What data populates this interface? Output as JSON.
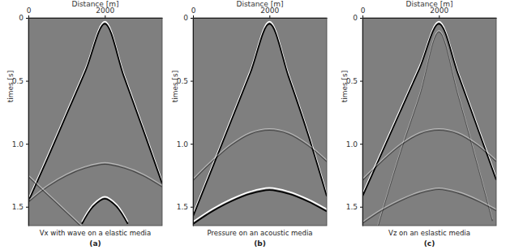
{
  "chart_data": [
    {
      "type": "line",
      "title": "Vx with wave on a elastic media",
      "subtitle": "(a)",
      "x_label": "Distance [m]",
      "y_label": "times [s]",
      "xlim": [
        0,
        3500
      ],
      "ylim": [
        0,
        1.65
      ],
      "xticks": [
        0,
        2000
      ],
      "yticks": [
        0,
        0.5,
        {
          "value": 1,
          "label": "1.0"
        },
        1.5
      ],
      "series": [
        {
          "line_style": "strong",
          "x": [
            0,
            500,
            1000,
            1500,
            2000,
            2500,
            3000,
            3500
          ],
          "values": [
            1.44,
            1.1,
            0.75,
            0.4,
            0.03,
            0.45,
            0.87,
            1.3
          ]
        },
        {
          "line_style": "faint",
          "x": [
            0,
            500,
            1000,
            1500,
            2000,
            2500,
            3000,
            3500
          ],
          "values": [
            1.45,
            1.33,
            1.24,
            1.18,
            1.15,
            1.18,
            1.24,
            1.33
          ]
        },
        {
          "line_style": "strong",
          "x": [
            1400,
            1700,
            2000,
            2300,
            2600
          ],
          "values": [
            1.62,
            1.48,
            1.42,
            1.48,
            1.62
          ]
        },
        {
          "line_style": "faint",
          "x": [
            0,
            700,
            1400
          ],
          "values": [
            1.25,
            1.45,
            1.65
          ]
        }
      ]
    },
    {
      "type": "line",
      "title": "Pressure on an acoustic media",
      "subtitle": "(b)",
      "x_label": "Distance [m]",
      "y_label": "times [s]",
      "xlim": [
        0,
        3500
      ],
      "ylim": [
        0,
        1.65
      ],
      "xticks": [
        0,
        2000
      ],
      "yticks": [
        0,
        0.5,
        {
          "value": 1,
          "label": "1.0"
        },
        1.5
      ],
      "series": [
        {
          "line_style": "strong",
          "x": [
            0,
            500,
            1000,
            1500,
            2000,
            2500,
            3000,
            3500
          ],
          "values": [
            1.56,
            1.18,
            0.8,
            0.42,
            0.03,
            0.45,
            0.9,
            1.4
          ]
        },
        {
          "line_style": "faint",
          "x": [
            0,
            500,
            1000,
            1500,
            2000,
            2500,
            3000,
            3500
          ],
          "values": [
            1.28,
            1.13,
            1.0,
            0.91,
            0.88,
            0.91,
            1.0,
            1.13
          ]
        },
        {
          "line_style": "strong",
          "x": [
            0,
            500,
            1000,
            1500,
            2000,
            2500,
            3000,
            3500
          ],
          "values": [
            1.62,
            1.52,
            1.44,
            1.38,
            1.35,
            1.38,
            1.44,
            1.52
          ]
        }
      ]
    },
    {
      "type": "line",
      "title": "Vz on an eslastic media",
      "subtitle": "(c)",
      "x_label": "Distance [m]",
      "y_label": "times [s]",
      "xlim": [
        0,
        3500
      ],
      "ylim": [
        0,
        1.65
      ],
      "xticks": [
        0,
        2000
      ],
      "yticks": [
        0,
        0.5,
        {
          "value": 1,
          "label": "1.0"
        },
        1.5
      ],
      "series": [
        {
          "line_style": "strong",
          "x": [
            0,
            500,
            1000,
            1500,
            2000,
            2500,
            3000,
            3500
          ],
          "values": [
            1.4,
            1.06,
            0.72,
            0.38,
            0.03,
            0.43,
            0.85,
            1.27
          ]
        },
        {
          "line_style": "faint",
          "x": [
            400,
            1000,
            1500,
            2000,
            2500,
            3000,
            3400
          ],
          "values": [
            1.65,
            1.05,
            0.6,
            0.1,
            0.6,
            1.15,
            1.6
          ]
        },
        {
          "line_style": "faint",
          "x": [
            0,
            500,
            1000,
            1500,
            2000,
            2500,
            3000,
            3500
          ],
          "values": [
            1.28,
            1.13,
            1.0,
            0.91,
            0.88,
            0.91,
            1.0,
            1.13
          ]
        },
        {
          "line_style": "faint",
          "x": [
            0,
            500,
            1000,
            1500,
            2000,
            2500,
            3000,
            3500
          ],
          "values": [
            1.62,
            1.52,
            1.44,
            1.38,
            1.35,
            1.38,
            1.44,
            1.52
          ]
        }
      ]
    }
  ]
}
